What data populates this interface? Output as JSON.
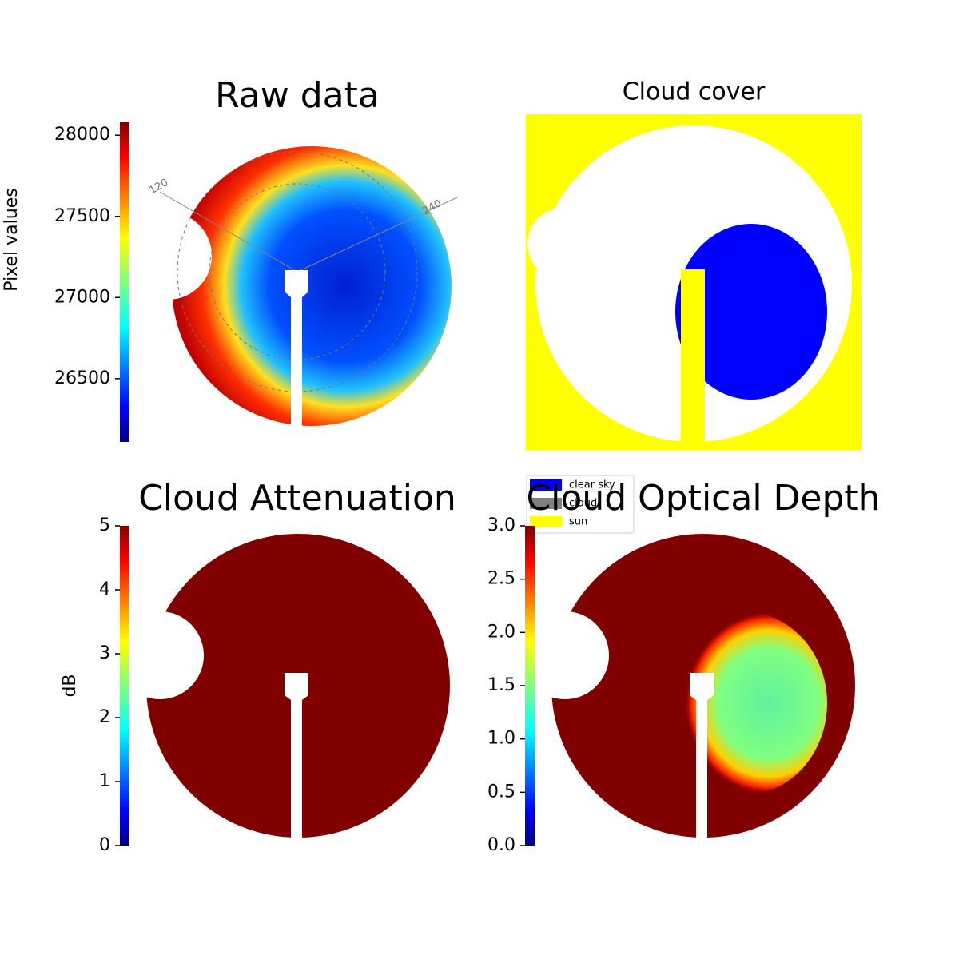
{
  "chart_data": [
    {
      "type": "image",
      "title": "Raw data",
      "colorbar_label": "Pixel values",
      "colormap": "jet",
      "clim": [
        26110,
        28080
      ],
      "cticks": [
        26500,
        27000,
        27500,
        28000
      ],
      "annotations": [
        "120",
        "240"
      ]
    },
    {
      "type": "image",
      "title": "Cloud cover",
      "series": [
        {
          "name": "clear sky",
          "color": "#0000ff"
        },
        {
          "name": "cloud",
          "color": "#808080"
        },
        {
          "name": "sun",
          "color": "#ffff00"
        }
      ]
    },
    {
      "type": "image",
      "title": "Cloud Attenuation",
      "colorbar_label": "dB",
      "colormap": "jet",
      "clim": [
        0,
        5
      ],
      "cticks": [
        0,
        1,
        2,
        3,
        4,
        5
      ]
    },
    {
      "type": "image",
      "title": "Cloud Optical Depth",
      "colormap": "jet",
      "clim": [
        0,
        3
      ],
      "cticks": [
        {
          "value": 0,
          "label": "0.0"
        },
        0.5,
        {
          "value": 1,
          "label": "1.0"
        },
        1.5,
        {
          "value": 2,
          "label": "2.0"
        },
        2.5,
        {
          "value": 3,
          "label": "3.0"
        }
      ]
    }
  ]
}
